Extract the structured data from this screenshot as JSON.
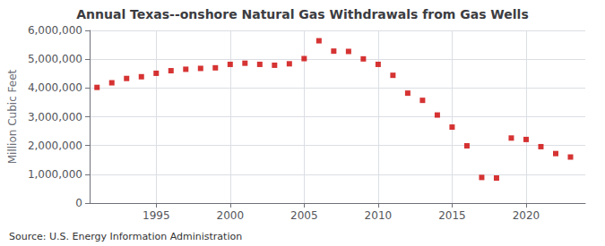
{
  "chart_data": {
    "type": "scatter",
    "title": "Annual Texas--onshore Natural Gas Withdrawals from Gas Wells",
    "ylabel": "Million Cubic Feet",
    "annotations": [
      "Source: U.S. Energy Information Administration"
    ],
    "x": [
      1991,
      1992,
      1993,
      1994,
      1995,
      1996,
      1997,
      1998,
      1999,
      2000,
      2001,
      2002,
      2003,
      2004,
      2005,
      2006,
      2007,
      2008,
      2009,
      2010,
      2011,
      2012,
      2013,
      2014,
      2015,
      2016,
      2017,
      2018,
      2019,
      2020,
      2021,
      2022,
      2023
    ],
    "values": [
      4020000,
      4180000,
      4330000,
      4390000,
      4510000,
      4600000,
      4650000,
      4680000,
      4700000,
      4820000,
      4860000,
      4820000,
      4790000,
      4840000,
      5020000,
      5640000,
      5280000,
      5270000,
      5010000,
      4820000,
      4440000,
      3820000,
      3570000,
      3060000,
      2640000,
      1990000,
      890000,
      870000,
      2260000,
      2210000,
      1960000,
      1720000,
      1600000
    ],
    "color": "#cc0000",
    "marker": "square",
    "xlim": [
      1990.5,
      2024
    ],
    "xticks": [
      1995,
      2000,
      2005,
      2010,
      2015,
      2020
    ],
    "ylim": [
      0,
      6000000
    ],
    "yticks": [
      0,
      {
        "value": 1000000,
        "label": "1,000,000"
      },
      {
        "value": 2000000,
        "label": "2,000,000"
      },
      {
        "value": 3000000,
        "label": "3,000,000"
      },
      {
        "value": 4000000,
        "label": "4,000,000"
      },
      {
        "value": 5000000,
        "label": "5,000,000"
      },
      {
        "value": 6000000,
        "label": "6,000,000"
      }
    ],
    "grid": true
  }
}
